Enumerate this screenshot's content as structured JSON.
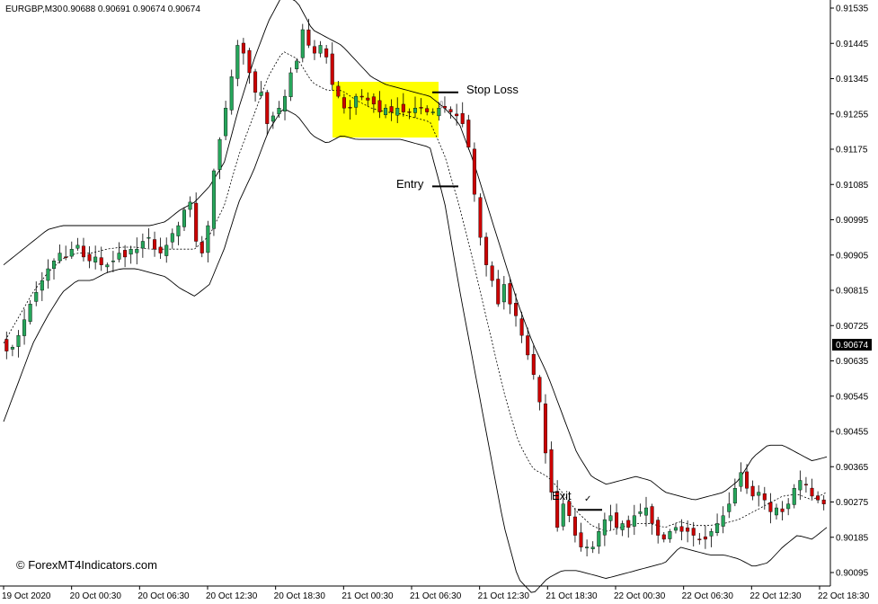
{
  "header": {
    "symbol": "EURGBP,M30",
    "ohlc": "0.90688 0.90691 0.90674 0.90674"
  },
  "colors": {
    "bull": "#26a65b",
    "bear": "#cc0000",
    "highlight": "#ffff00",
    "axis": "#000000",
    "price_tag_bg": "#000000"
  },
  "watermark": "© ForexMT4Indicators.com",
  "annotations": {
    "stop_loss": "Stop Loss",
    "entry": "Entry",
    "exit": "Exit"
  },
  "current_price": "0.90674",
  "chart_data": {
    "type": "candlestick",
    "title": "",
    "ylim": [
      0.90085,
      0.91565
    ],
    "yticks": [
      "0.91535",
      "0.91445",
      "0.91345",
      "0.91255",
      "0.91175",
      "0.91085",
      "0.90995",
      "0.90905",
      "0.90815",
      "0.90725",
      "0.90635",
      "0.90545",
      "0.90455",
      "0.90365",
      "0.90275",
      "0.90185",
      "0.90095"
    ],
    "xticks": [
      "19 Oct 2020",
      "20 Oct 00:30",
      "20 Oct 06:30",
      "20 Oct 12:30",
      "20 Oct 18:30",
      "21 Oct 00:30",
      "21 Oct 06:30",
      "21 Oct 12:30",
      "21 Oct 18:30",
      "22 Oct 00:30",
      "22 Oct 06:30",
      "22 Oct 12:30",
      "22 Oct 18:30"
    ],
    "close_path": [
      0.9066,
      0.9067,
      0.907,
      0.9074,
      0.9078,
      0.9081,
      0.9084,
      0.9087,
      0.9089,
      0.9091,
      0.909,
      0.9092,
      0.9093,
      0.909,
      0.9089,
      0.909,
      0.9088,
      0.9088,
      0.9089,
      0.9091,
      0.909,
      0.9092,
      0.9092,
      0.9094,
      0.9095,
      0.9092,
      0.9091,
      0.9093,
      0.9096,
      0.9098,
      0.9102,
      0.9104,
      0.9094,
      0.9091,
      0.9098,
      0.9112,
      0.912,
      0.9128,
      0.9136,
      0.9144,
      0.9142,
      0.9137,
      0.9132,
      0.9132,
      0.9124,
      0.9126,
      0.9128,
      0.9131,
      0.9137,
      0.914,
      0.9148,
      0.9144,
      0.9142,
      0.9144,
      0.9141,
      0.9134,
      0.9131,
      0.9128,
      0.9128,
      0.9131,
      0.9131,
      0.913,
      0.9129,
      0.9127,
      0.9128,
      0.9127,
      0.9128,
      0.9127,
      0.9127,
      0.9128,
      0.9128,
      0.9127,
      0.9127,
      0.9128,
      0.9128,
      0.9127,
      0.9126,
      0.9124,
      0.9118,
      0.9106,
      0.9095,
      0.9088,
      0.9084,
      0.9078,
      0.9083,
      0.9078,
      0.9075,
      0.907,
      0.9065,
      0.906,
      0.9053,
      0.904,
      0.903,
      0.9021,
      0.9027,
      0.9024,
      0.9019,
      0.9016,
      0.9016,
      0.9016,
      0.902,
      0.9023,
      0.9024,
      0.9021,
      0.9022,
      0.9021,
      0.9024,
      0.9025,
      0.9026,
      0.9022,
      0.9019,
      0.9018,
      0.902,
      0.9021,
      0.902,
      0.902,
      0.9019,
      0.9018,
      0.9018,
      0.902,
      0.9022,
      0.9024,
      0.9027,
      0.9031,
      0.9035,
      0.9031,
      0.9029,
      0.903,
      0.9028,
      0.9025,
      0.9026,
      0.9025,
      0.9027,
      0.9031,
      0.9033,
      0.9032,
      0.9029,
      0.9028,
      0.9027
    ],
    "bb_upper_path": [
      0.9088,
      0.9091,
      0.9094,
      0.9097,
      0.9098,
      0.9098,
      0.9098,
      0.9098,
      0.9098,
      0.9098,
      0.9098,
      0.9099,
      0.9102,
      0.9104,
      0.9108,
      0.9114,
      0.9128,
      0.914,
      0.915,
      0.9157,
      0.9155,
      0.9148,
      0.9146,
      0.9144,
      0.914,
      0.9136,
      0.9134,
      0.9133,
      0.9132,
      0.9131,
      0.9128,
      0.9124,
      0.9114,
      0.9102,
      0.909,
      0.9078,
      0.9068,
      0.906,
      0.905,
      0.904,
      0.9034,
      0.9032,
      0.9033,
      0.9034,
      0.9033,
      0.903,
      0.9029,
      0.9028,
      0.9029,
      0.903,
      0.9033,
      0.9039,
      0.9042,
      0.9042,
      0.904,
      0.9038,
      0.9039
    ],
    "bb_lower_path": [
      0.9048,
      0.9058,
      0.9068,
      0.9075,
      0.9081,
      0.9084,
      0.9084,
      0.9086,
      0.9087,
      0.9087,
      0.9086,
      0.9085,
      0.9082,
      0.908,
      0.9083,
      0.9092,
      0.9104,
      0.9112,
      0.9122,
      0.9128,
      0.9126,
      0.9121,
      0.9119,
      0.9121,
      0.912,
      0.912,
      0.912,
      0.912,
      0.9119,
      0.9118,
      0.9104,
      0.9082,
      0.9062,
      0.9042,
      0.9022,
      0.9008,
      0.9004,
      0.9008,
      0.901,
      0.901,
      0.9009,
      0.9008,
      0.9009,
      0.901,
      0.9011,
      0.9012,
      0.9016,
      0.9015,
      0.9014,
      0.9014,
      0.9013,
      0.9011,
      0.9012,
      0.9016,
      0.9019,
      0.9018,
      0.9021
    ],
    "stop_loss_level": 0.9132,
    "entry_level": 0.9108,
    "exit_level": 0.90255
  }
}
